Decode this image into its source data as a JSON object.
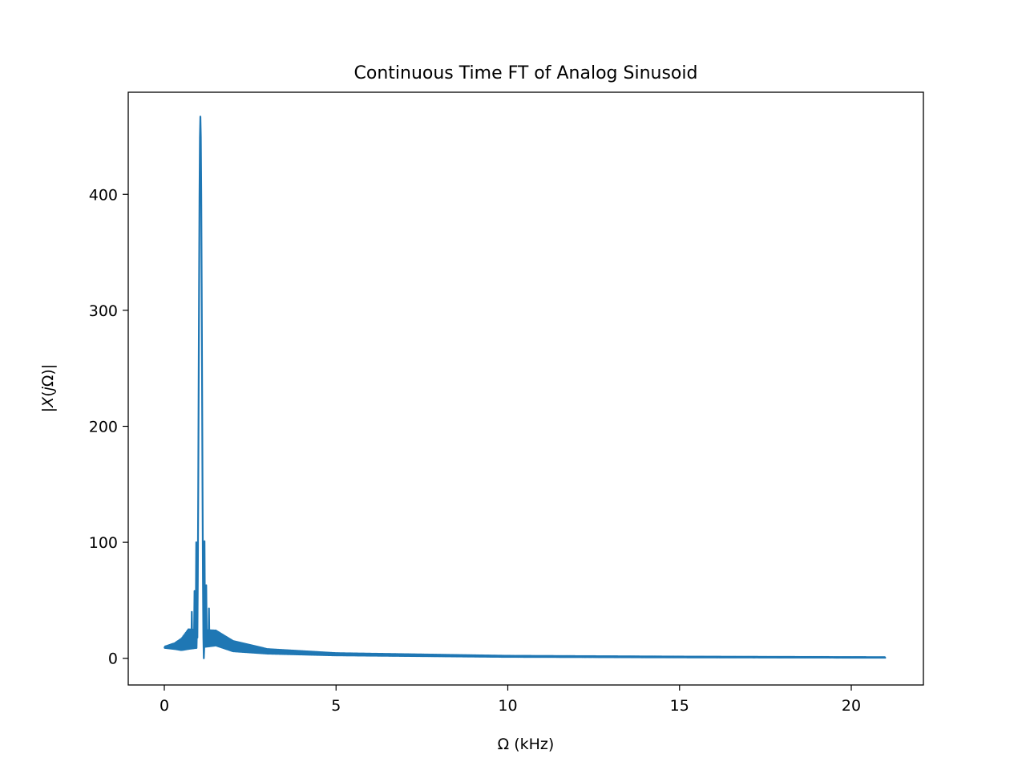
{
  "chart_data": {
    "type": "line",
    "title": "Continuous Time FT of Analog Sinusoid",
    "xlabel": "Ω (kHz)",
    "ylabel_parts": [
      "|",
      "X",
      "(",
      "j",
      "Ω)|"
    ],
    "xlim": [
      -1.05,
      22.1
    ],
    "ylim": [
      -23,
      488
    ],
    "xticks": [
      0,
      5,
      10,
      15,
      20
    ],
    "xtick_labels": [
      "0",
      "5",
      "10",
      "15",
      "20"
    ],
    "yticks": [
      0,
      100,
      200,
      300,
      400
    ],
    "ytick_labels": [
      "0",
      "100",
      "200",
      "300",
      "400"
    ],
    "grid": false,
    "series": [
      {
        "color": "#1f77b4",
        "x_range": [
          0,
          21
        ],
        "peak_x": 1.05,
        "peak_y": 467,
        "sidelobe_peaks": [
          [
            0.93,
            100
          ],
          [
            1.17,
            101
          ],
          [
            0.88,
            58
          ],
          [
            1.22,
            63
          ],
          [
            0.8,
            40
          ],
          [
            1.3,
            43
          ]
        ],
        "envelope": {
          "upper": [
            [
              0,
              10
            ],
            [
              0.3,
              13
            ],
            [
              0.5,
              17
            ],
            [
              0.7,
              25
            ],
            [
              1.5,
              24
            ],
            [
              2,
              15
            ],
            [
              3,
              8
            ],
            [
              5,
              4.5
            ],
            [
              10,
              2.2
            ],
            [
              15,
              1.5
            ],
            [
              21,
              1
            ]
          ],
          "lower": [
            [
              0,
              9
            ],
            [
              0.3,
              8
            ],
            [
              0.5,
              7
            ],
            [
              0.7,
              8
            ],
            [
              1.5,
              11
            ],
            [
              2,
              6
            ],
            [
              3,
              4
            ],
            [
              5,
              2.5
            ],
            [
              10,
              1.2
            ],
            [
              15,
              0.8
            ],
            [
              21,
              0.5
            ]
          ]
        }
      }
    ]
  }
}
